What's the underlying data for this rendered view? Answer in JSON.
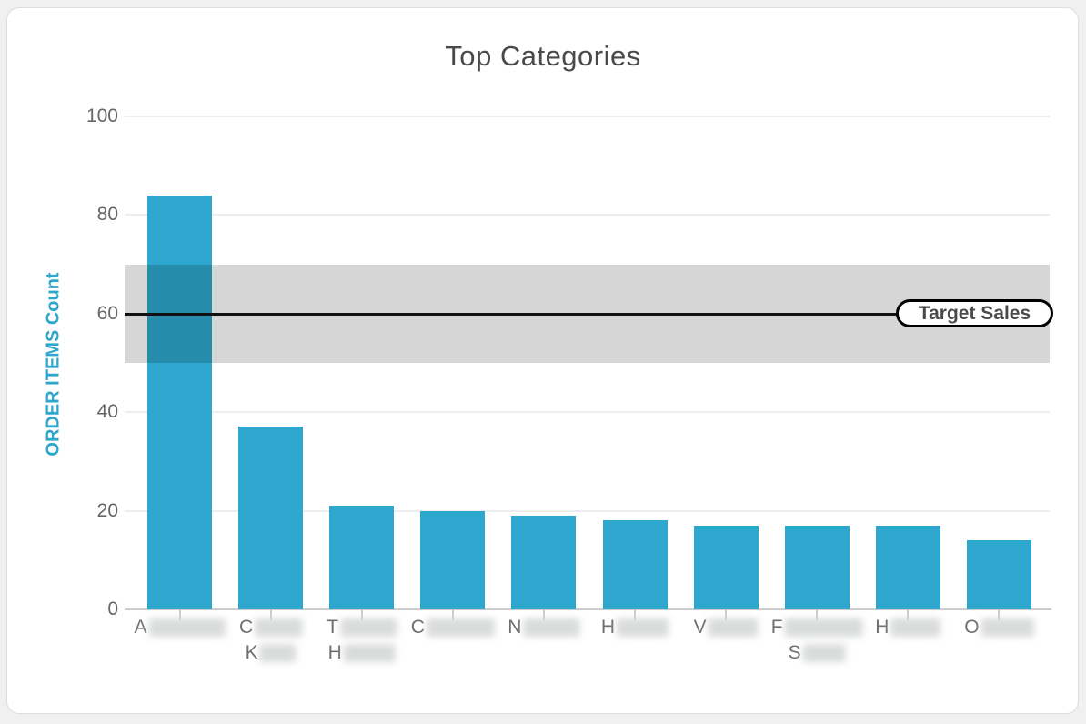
{
  "header": {
    "title": "Top Categories",
    "menu_icon": "hamburger-icon"
  },
  "target_label": "Target Sales",
  "colors": {
    "bar": "#2da7cd",
    "axis_title": "#2fa7cc",
    "band": "rgba(0,0,0,0.16)",
    "target_line": "#000000",
    "title_text": "#4a4a4a",
    "tick_text": "#666666"
  },
  "chart_data": {
    "type": "bar",
    "title": "Top Categories",
    "xlabel": "",
    "ylabel": "ORDER ITEMS Count",
    "ylim": [
      0,
      100
    ],
    "yticks": [
      0,
      20,
      40,
      60,
      80,
      100
    ],
    "grid": true,
    "legend": "none",
    "categories": [
      {
        "lines": [
          {
            "visible_letter": "A",
            "redacted": true,
            "blur_width": 84
          }
        ]
      },
      {
        "lines": [
          {
            "visible_letter": "C",
            "redacted": true,
            "blur_width": 52
          },
          {
            "visible_letter": "K",
            "redacted": true,
            "blur_width": 40
          }
        ]
      },
      {
        "lines": [
          {
            "visible_letter": "T",
            "redacted": true,
            "blur_width": 62
          },
          {
            "visible_letter": "H",
            "redacted": true,
            "blur_width": 57
          }
        ]
      },
      {
        "lines": [
          {
            "visible_letter": "C",
            "redacted": true,
            "blur_width": 75
          }
        ]
      },
      {
        "lines": [
          {
            "visible_letter": "N",
            "redacted": true,
            "blur_width": 62
          }
        ]
      },
      {
        "lines": [
          {
            "visible_letter": "H",
            "redacted": true,
            "blur_width": 57
          }
        ]
      },
      {
        "lines": [
          {
            "visible_letter": "V",
            "redacted": true,
            "blur_width": 55
          }
        ]
      },
      {
        "lines": [
          {
            "visible_letter": "F",
            "redacted": true,
            "blur_width": 86
          },
          {
            "visible_letter": "S",
            "redacted": true,
            "blur_width": 47
          }
        ]
      },
      {
        "lines": [
          {
            "visible_letter": "H",
            "redacted": true,
            "blur_width": 55
          }
        ]
      },
      {
        "lines": [
          {
            "visible_letter": "O",
            "redacted": true,
            "blur_width": 58
          }
        ]
      }
    ],
    "values": [
      84,
      37,
      21,
      20,
      19,
      18,
      17,
      17,
      17,
      14
    ],
    "plot_band": {
      "from": 50,
      "to": 70
    },
    "plot_line": {
      "value": 60,
      "label": "Target Sales"
    }
  }
}
